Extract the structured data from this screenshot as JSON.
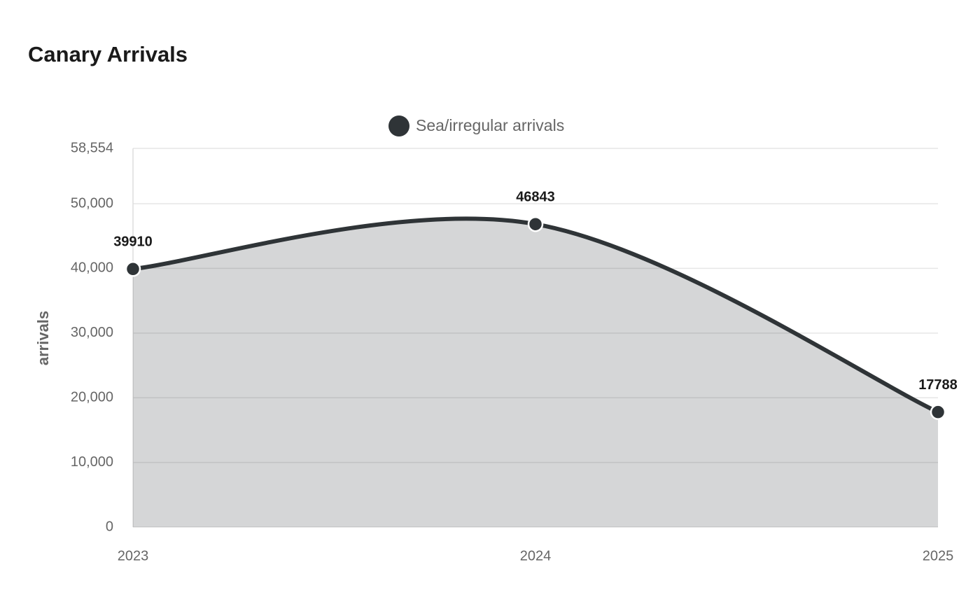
{
  "chart_data": {
    "type": "area",
    "title": "Canary Arrivals",
    "ylabel": "arrivals",
    "categories": [
      "2023",
      "2024",
      "2025"
    ],
    "series": [
      {
        "name": "Sea/irregular arrivals",
        "color": "#2f3437",
        "values": [
          39910,
          46843,
          17788
        ]
      }
    ],
    "ylim": [
      0,
      58554
    ],
    "yticks": [
      0,
      {
        "value": 10000,
        "label": "10,000"
      },
      {
        "value": 20000,
        "label": "20,000"
      },
      {
        "value": 30000,
        "label": "30,000"
      },
      {
        "value": 40000,
        "label": "40,000"
      },
      {
        "value": 50000,
        "label": "50,000"
      },
      {
        "value": 58554,
        "label": "58,554"
      }
    ],
    "grid": true,
    "legend": "top"
  }
}
